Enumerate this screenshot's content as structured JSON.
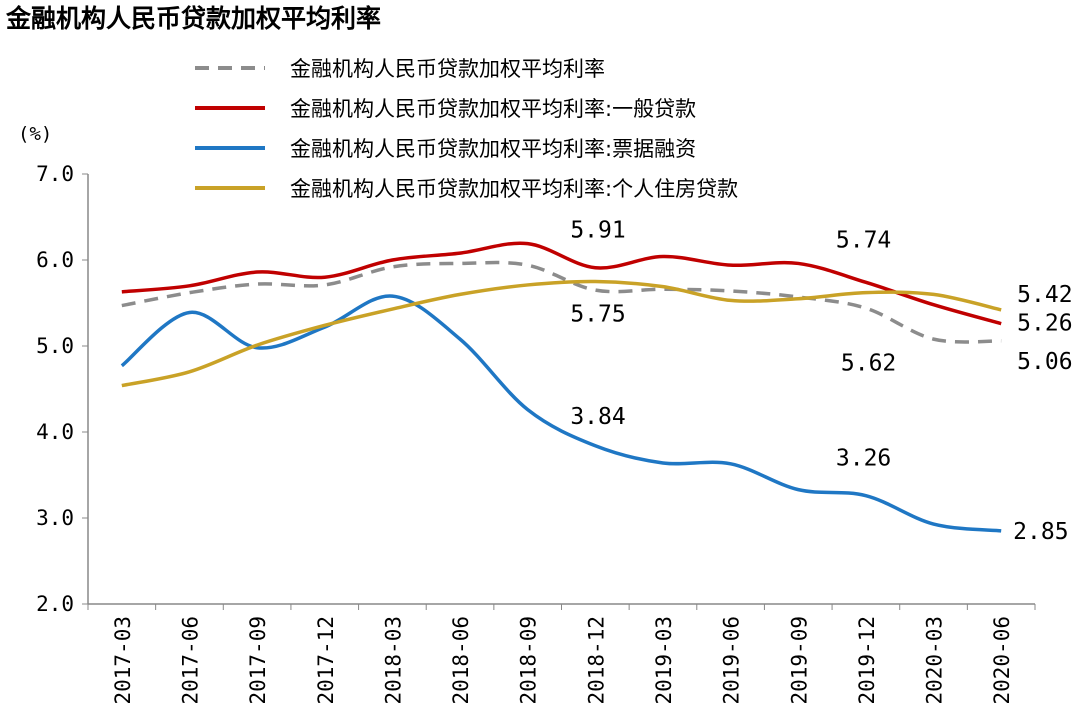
{
  "chart_data": {
    "type": "line",
    "title": "金融机构人民币贷款加权平均利率",
    "ylabel": "(%)",
    "xlabel": "",
    "ylim": [
      2.0,
      7.0
    ],
    "yticks": [
      "2.0",
      "3.0",
      "4.0",
      "5.0",
      "6.0",
      "7.0"
    ],
    "categories": [
      "2017-03",
      "2017-06",
      "2017-09",
      "2017-12",
      "2018-03",
      "2018-06",
      "2018-09",
      "2018-12",
      "2019-03",
      "2019-06",
      "2019-09",
      "2019-12",
      "2020-03",
      "2020-06"
    ],
    "grid": false,
    "legend_position": "top",
    "series": [
      {
        "name": "金融机构人民币贷款加权平均利率",
        "color": "#8c8c8c",
        "dash": true,
        "values": [
          5.47,
          5.62,
          5.72,
          5.71,
          5.92,
          5.96,
          5.94,
          5.65,
          5.66,
          5.64,
          5.57,
          5.44,
          5.08,
          5.06
        ]
      },
      {
        "name": "金融机构人民币贷款加权平均利率:一般贷款",
        "color": "#c00000",
        "dash": false,
        "values": [
          5.63,
          5.7,
          5.86,
          5.8,
          6.0,
          6.08,
          6.19,
          5.91,
          6.04,
          5.94,
          5.96,
          5.74,
          5.48,
          5.26
        ]
      },
      {
        "name": "金融机构人民币贷款加权平均利率:票据融资",
        "color": "#1f77c4",
        "dash": false,
        "values": [
          4.77,
          5.39,
          4.98,
          5.22,
          5.58,
          5.08,
          4.26,
          3.84,
          3.64,
          3.63,
          3.33,
          3.26,
          2.93,
          2.85
        ]
      },
      {
        "name": "金融机构人民币贷款加权平均利率:个人住房贷款",
        "color": "#c9a227",
        "dash": false,
        "values": [
          4.54,
          4.7,
          5.01,
          5.24,
          5.43,
          5.6,
          5.71,
          5.75,
          5.69,
          5.53,
          5.55,
          5.62,
          5.6,
          5.42
        ]
      }
    ],
    "data_labels": [
      {
        "series": 1,
        "index": 7,
        "text": "5.91"
      },
      {
        "series": 3,
        "index": 7,
        "text": "5.75"
      },
      {
        "series": 2,
        "index": 7,
        "text": "3.84"
      },
      {
        "series": 1,
        "index": 11,
        "text": "5.74"
      },
      {
        "series": 3,
        "index": 11,
        "text": "5.62"
      },
      {
        "series": 2,
        "index": 11,
        "text": "3.26"
      },
      {
        "series": 3,
        "index": 13,
        "text": "5.42"
      },
      {
        "series": 1,
        "index": 13,
        "text": "5.26"
      },
      {
        "series": 0,
        "index": 13,
        "text": "5.06"
      },
      {
        "series": 2,
        "index": 13,
        "text": "2.85"
      }
    ]
  }
}
